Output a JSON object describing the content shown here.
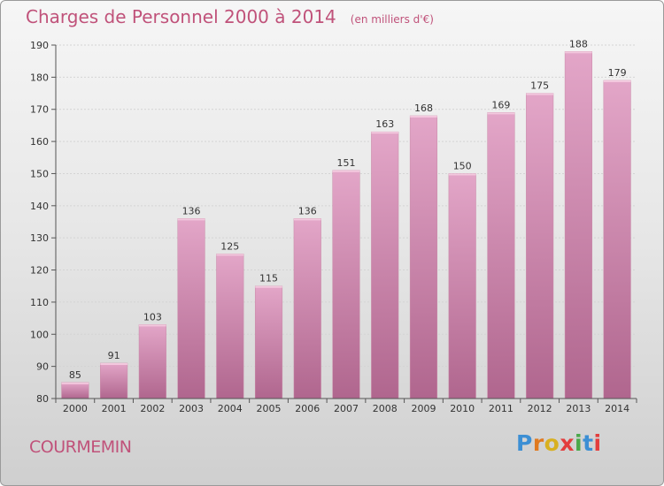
{
  "header": {
    "title": "Charges de Personnel 2000 à 2014",
    "subtitle": "(en milliers d'€)"
  },
  "footer": {
    "town": "COURMEMIN",
    "logo_text": "Proxiti"
  },
  "colors": {
    "bar_light": "#e3a6c8",
    "bar_dark": "#b0668e",
    "title": "#c0527a",
    "logo": [
      "#3c8fd4",
      "#e07a20",
      "#d8b020",
      "#e33d3d",
      "#4aa84a",
      "#3c8fd4",
      "#e33d3d"
    ]
  },
  "chart_data": {
    "type": "bar",
    "title": "Charges de Personnel 2000 à 2014",
    "subtitle": "(en milliers d'€)",
    "xlabel": "",
    "ylabel": "",
    "categories": [
      "2000",
      "2001",
      "2002",
      "2003",
      "2004",
      "2005",
      "2006",
      "2007",
      "2008",
      "2009",
      "2010",
      "2011",
      "2012",
      "2013",
      "2014"
    ],
    "values": [
      85,
      91,
      103,
      136,
      125,
      115,
      136,
      151,
      163,
      168,
      150,
      169,
      175,
      188,
      179
    ],
    "ylim": [
      80,
      190
    ],
    "yticks": [
      80,
      90,
      100,
      110,
      120,
      130,
      140,
      150,
      160,
      170,
      180,
      190
    ],
    "grid": true
  }
}
